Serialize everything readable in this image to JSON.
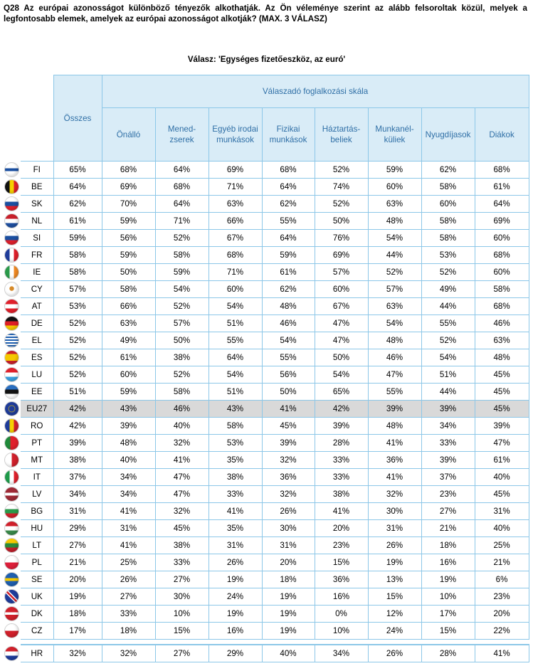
{
  "question": "Q28 Az európai azonosságot különböző tényezők alkothatják. Az Ön véleménye szerint az alább felsoroltak közül, melyek a legfontosabb elemek, amelyek az európai azonosságot alkotják? (MAX. 3 VÁLASZ)",
  "subtitle": "Válasz: 'Egységes fizetőeszköz, az euró'",
  "headers": {
    "total": "Összes",
    "group": "Válaszadó foglalkozási skála",
    "columns": [
      "Önálló",
      "Mened-\nzserek",
      "Egyéb irodai\nmunkások",
      "Fizikai\nmunkások",
      "Háztartás-\nbeliek",
      "Munkanél-\nküliek",
      "Nyugdíjasok",
      "Diákok"
    ]
  },
  "rows": [
    {
      "code": "FI",
      "flag": "finland-flag-icon",
      "values": [
        "65%",
        "68%",
        "64%",
        "69%",
        "68%",
        "52%",
        "59%",
        "62%",
        "68%"
      ]
    },
    {
      "code": "BE",
      "flag": "belgium-flag-icon",
      "values": [
        "64%",
        "69%",
        "68%",
        "71%",
        "64%",
        "74%",
        "60%",
        "58%",
        "61%"
      ]
    },
    {
      "code": "SK",
      "flag": "slovakia-flag-icon",
      "values": [
        "62%",
        "70%",
        "64%",
        "63%",
        "62%",
        "52%",
        "63%",
        "60%",
        "64%"
      ]
    },
    {
      "code": "NL",
      "flag": "netherlands-flag-icon",
      "values": [
        "61%",
        "59%",
        "71%",
        "66%",
        "55%",
        "50%",
        "48%",
        "58%",
        "69%"
      ]
    },
    {
      "code": "SI",
      "flag": "slovenia-flag-icon",
      "values": [
        "59%",
        "56%",
        "52%",
        "67%",
        "64%",
        "76%",
        "54%",
        "58%",
        "60%"
      ]
    },
    {
      "code": "FR",
      "flag": "france-flag-icon",
      "values": [
        "58%",
        "59%",
        "58%",
        "68%",
        "59%",
        "69%",
        "44%",
        "53%",
        "68%"
      ]
    },
    {
      "code": "IE",
      "flag": "ireland-flag-icon",
      "values": [
        "58%",
        "50%",
        "59%",
        "71%",
        "61%",
        "57%",
        "52%",
        "52%",
        "60%"
      ]
    },
    {
      "code": "CY",
      "flag": "cyprus-flag-icon",
      "values": [
        "57%",
        "58%",
        "54%",
        "60%",
        "62%",
        "60%",
        "57%",
        "49%",
        "58%"
      ]
    },
    {
      "code": "AT",
      "flag": "austria-flag-icon",
      "values": [
        "53%",
        "66%",
        "52%",
        "54%",
        "48%",
        "67%",
        "63%",
        "44%",
        "68%"
      ]
    },
    {
      "code": "DE",
      "flag": "germany-flag-icon",
      "values": [
        "52%",
        "63%",
        "57%",
        "51%",
        "46%",
        "47%",
        "54%",
        "55%",
        "46%"
      ]
    },
    {
      "code": "EL",
      "flag": "greece-flag-icon",
      "values": [
        "52%",
        "49%",
        "50%",
        "55%",
        "54%",
        "47%",
        "48%",
        "52%",
        "63%"
      ]
    },
    {
      "code": "ES",
      "flag": "spain-flag-icon",
      "values": [
        "52%",
        "61%",
        "38%",
        "64%",
        "55%",
        "50%",
        "46%",
        "54%",
        "48%"
      ]
    },
    {
      "code": "LU",
      "flag": "luxembourg-flag-icon",
      "values": [
        "52%",
        "60%",
        "52%",
        "54%",
        "56%",
        "54%",
        "47%",
        "51%",
        "45%"
      ]
    },
    {
      "code": "EE",
      "flag": "estonia-flag-icon",
      "values": [
        "51%",
        "59%",
        "58%",
        "51%",
        "50%",
        "65%",
        "55%",
        "44%",
        "45%"
      ]
    },
    {
      "code": "EU27",
      "flag": "eu-flag-icon",
      "values": [
        "42%",
        "43%",
        "46%",
        "43%",
        "41%",
        "42%",
        "39%",
        "39%",
        "45%"
      ],
      "highlight": true
    },
    {
      "code": "RO",
      "flag": "romania-flag-icon",
      "values": [
        "42%",
        "39%",
        "40%",
        "58%",
        "45%",
        "39%",
        "48%",
        "34%",
        "39%"
      ]
    },
    {
      "code": "PT",
      "flag": "portugal-flag-icon",
      "values": [
        "39%",
        "48%",
        "32%",
        "53%",
        "39%",
        "28%",
        "41%",
        "33%",
        "47%"
      ]
    },
    {
      "code": "MT",
      "flag": "malta-flag-icon",
      "values": [
        "38%",
        "40%",
        "41%",
        "35%",
        "32%",
        "33%",
        "36%",
        "39%",
        "61%"
      ]
    },
    {
      "code": "IT",
      "flag": "italy-flag-icon",
      "values": [
        "37%",
        "34%",
        "47%",
        "38%",
        "36%",
        "33%",
        "41%",
        "37%",
        "40%"
      ]
    },
    {
      "code": "LV",
      "flag": "latvia-flag-icon",
      "values": [
        "34%",
        "34%",
        "47%",
        "33%",
        "32%",
        "38%",
        "32%",
        "23%",
        "45%"
      ]
    },
    {
      "code": "BG",
      "flag": "bulgaria-flag-icon",
      "values": [
        "31%",
        "41%",
        "32%",
        "41%",
        "26%",
        "41%",
        "30%",
        "27%",
        "31%"
      ]
    },
    {
      "code": "HU",
      "flag": "hungary-flag-icon",
      "values": [
        "29%",
        "31%",
        "45%",
        "35%",
        "30%",
        "20%",
        "31%",
        "21%",
        "40%"
      ]
    },
    {
      "code": "LT",
      "flag": "lithuania-flag-icon",
      "values": [
        "27%",
        "41%",
        "38%",
        "31%",
        "31%",
        "23%",
        "26%",
        "18%",
        "25%"
      ]
    },
    {
      "code": "PL",
      "flag": "poland-flag-icon",
      "values": [
        "21%",
        "25%",
        "33%",
        "26%",
        "20%",
        "15%",
        "19%",
        "16%",
        "21%"
      ]
    },
    {
      "code": "SE",
      "flag": "sweden-flag-icon",
      "values": [
        "20%",
        "26%",
        "27%",
        "19%",
        "18%",
        "36%",
        "13%",
        "19%",
        "6%"
      ]
    },
    {
      "code": "UK",
      "flag": "uk-flag-icon",
      "values": [
        "19%",
        "27%",
        "30%",
        "24%",
        "19%",
        "16%",
        "15%",
        "10%",
        "23%"
      ]
    },
    {
      "code": "DK",
      "flag": "denmark-flag-icon",
      "values": [
        "18%",
        "33%",
        "10%",
        "19%",
        "19%",
        "0%",
        "12%",
        "17%",
        "20%"
      ]
    },
    {
      "code": "CZ",
      "flag": "czech-flag-icon",
      "values": [
        "17%",
        "18%",
        "15%",
        "16%",
        "19%",
        "10%",
        "24%",
        "15%",
        "22%"
      ]
    }
  ],
  "extra_row": {
    "code": "HR",
    "flag": "croatia-flag-icon",
    "values": [
      "32%",
      "32%",
      "27%",
      "29%",
      "40%",
      "34%",
      "26%",
      "28%",
      "41%"
    ]
  },
  "colors": {
    "header_bg": "#d9ecf7",
    "header_text": "#2f6fa6",
    "border": "#8cc7e8",
    "eu_row_bg": "#d9d9d9"
  }
}
